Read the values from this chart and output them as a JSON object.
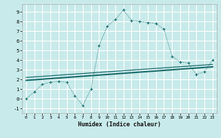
{
  "title": "",
  "xlabel": "Humidex (Indice chaleur)",
  "background_color": "#c8eaea",
  "grid_color": "#ffffff",
  "line_color": "#1a6b6b",
  "xlim": [
    -0.5,
    23.5
  ],
  "ylim": [
    -1.5,
    9.8
  ],
  "xticks": [
    0,
    1,
    2,
    3,
    4,
    5,
    6,
    7,
    8,
    9,
    10,
    11,
    12,
    13,
    14,
    15,
    16,
    17,
    18,
    19,
    20,
    21,
    22,
    23
  ],
  "yticks": [
    -1,
    0,
    1,
    2,
    3,
    4,
    5,
    6,
    7,
    8,
    9
  ],
  "humidex_x": [
    0,
    1,
    2,
    3,
    4,
    5,
    6,
    7,
    8,
    9,
    10,
    11,
    12,
    13,
    14,
    15,
    16,
    17,
    18,
    19,
    20,
    21,
    22,
    23
  ],
  "humidex_y": [
    0.0,
    0.7,
    1.5,
    1.7,
    1.8,
    1.7,
    0.3,
    -0.7,
    1.0,
    5.5,
    7.5,
    8.2,
    9.2,
    8.1,
    8.0,
    7.9,
    7.8,
    7.2,
    4.4,
    3.8,
    3.7,
    2.5,
    2.8,
    4.0
  ],
  "line1_x": [
    0,
    23
  ],
  "line1_y": [
    1.9,
    3.3
  ],
  "line2_x": [
    0,
    23
  ],
  "line2_y": [
    2.2,
    3.55
  ]
}
